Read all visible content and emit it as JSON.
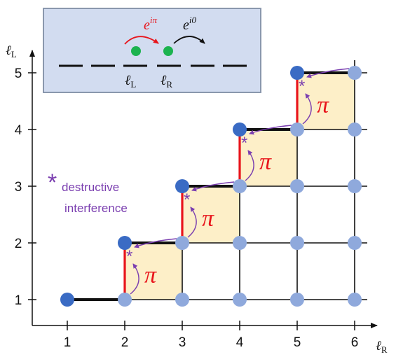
{
  "colors": {
    "grid": "#111111",
    "occupied_site": "#3a6bc4",
    "empty_site": "#8fa9dc",
    "pi_cell_fill": "#fdefc8",
    "pi_edge": "#e8141b",
    "pi_label": "#e8141b",
    "destructive_arrow": "#7b3fb0",
    "inset_background": "#d2dcf0",
    "inset_border": "#8a97ad",
    "inset_particle": "#1cb34f",
    "inset_hop_red": "#e8141b",
    "inset_hop_black": "#111111"
  },
  "axes": {
    "x_label": "ℓ",
    "x_label_sub": "R",
    "y_label": "ℓ",
    "y_label_sub": "L",
    "x_ticks": [
      "1",
      "2",
      "3",
      "4",
      "5",
      "6"
    ],
    "y_ticks": [
      "1",
      "2",
      "3",
      "4",
      "5"
    ]
  },
  "lattice": {
    "columns": [
      1,
      2,
      3,
      4,
      5,
      6
    ],
    "rows": [
      1,
      2,
      3,
      4,
      5
    ],
    "occupied_sites": [
      [
        1,
        1
      ],
      [
        2,
        2
      ],
      [
        3,
        3
      ],
      [
        4,
        4
      ],
      [
        5,
        5
      ]
    ],
    "pi_plaquettes": [
      [
        2,
        1
      ],
      [
        3,
        2
      ],
      [
        4,
        3
      ],
      [
        5,
        4
      ]
    ],
    "pi_label": "π"
  },
  "legend_note": {
    "marker": "*",
    "line1": "destructive",
    "line2": "interference"
  },
  "inset": {
    "hop_left_base": "e",
    "hop_left_exp": "iπ",
    "hop_right_base": "e",
    "hop_right_exp": "i0",
    "site_left": "ℓ",
    "site_left_sub": "L",
    "site_right": "ℓ",
    "site_right_sub": "R"
  }
}
